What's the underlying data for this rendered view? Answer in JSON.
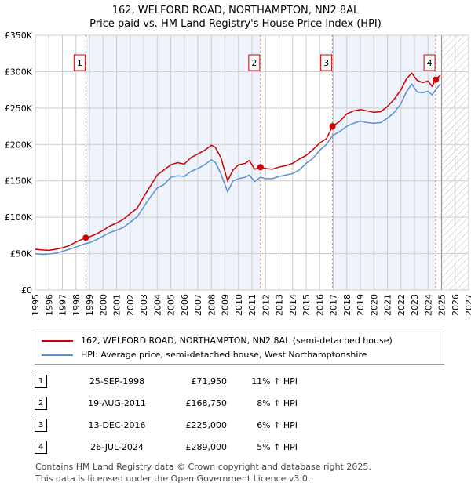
{
  "title_line1": "162, WELFORD ROAD, NORTHAMPTON, NN2 8AL",
  "title_line2": "Price paid vs. HM Land Registry's House Price Index (HPI)",
  "chart_data": {
    "type": "line",
    "xlim": [
      1995,
      2027
    ],
    "ylim": [
      0,
      350000
    ],
    "x_ticks": [
      "1995",
      "1996",
      "1997",
      "1998",
      "1999",
      "2000",
      "2001",
      "2002",
      "2003",
      "2004",
      "2005",
      "2006",
      "2007",
      "2008",
      "2009",
      "2010",
      "2011",
      "2012",
      "2013",
      "2014",
      "2015",
      "2016",
      "2017",
      "2018",
      "2019",
      "2020",
      "2021",
      "2022",
      "2023",
      "2024",
      "2025",
      "2026",
      "2027"
    ],
    "y_ticks": [
      {
        "v": 0,
        "label": "£0"
      },
      {
        "v": 50000,
        "label": "£50K"
      },
      {
        "v": 100000,
        "label": "£100K"
      },
      {
        "v": 150000,
        "label": "£150K"
      },
      {
        "v": 200000,
        "label": "£200K"
      },
      {
        "v": 250000,
        "label": "£250K"
      },
      {
        "v": 300000,
        "label": "£300K"
      },
      {
        "v": 350000,
        "label": "£350K"
      }
    ],
    "grid": true,
    "forecast_from": 2025.0,
    "shaded_ranges": [
      [
        1998.73,
        2011.63
      ],
      [
        2016.95,
        2024.57
      ]
    ],
    "series": [
      {
        "name": "162, WELFORD ROAD, NORTHAMPTON, NN2 8AL (semi-detached house)",
        "color": "#cc0000",
        "x": [
          1995,
          1995.5,
          1996,
          1996.5,
          1997,
          1997.5,
          1998,
          1998.73,
          1999,
          1999.5,
          2000,
          2000.5,
          2001,
          2001.5,
          2002,
          2002.5,
          2003,
          2003.5,
          2004,
          2004.5,
          2005,
          2005.5,
          2006,
          2006.5,
          2007,
          2007.5,
          2008,
          2008.3,
          2008.7,
          2009.2,
          2009.6,
          2010,
          2010.5,
          2010.8,
          2011.2,
          2011.63,
          2012,
          2012.5,
          2013,
          2013.5,
          2014,
          2014.5,
          2015,
          2015.5,
          2016,
          2016.5,
          2016.95,
          2017.5,
          2018,
          2018.5,
          2019,
          2019.5,
          2020,
          2020.5,
          2021,
          2021.5,
          2022,
          2022.4,
          2022.8,
          2023.2,
          2023.6,
          2024,
          2024.3,
          2024.57,
          2024.9
        ],
        "y": [
          56000,
          55000,
          54500,
          56000,
          58000,
          61000,
          66000,
          71950,
          73000,
          77000,
          82000,
          88000,
          92000,
          97000,
          105000,
          112000,
          128000,
          143000,
          158000,
          165000,
          172000,
          175000,
          173000,
          182000,
          187000,
          192000,
          199000,
          196000,
          182000,
          150000,
          165000,
          172000,
          174000,
          178000,
          166000,
          168750,
          167000,
          166000,
          169000,
          171000,
          174000,
          180000,
          185000,
          193000,
          202000,
          208000,
          225000,
          232000,
          242000,
          246000,
          248000,
          246000,
          244000,
          245000,
          252000,
          262000,
          275000,
          290000,
          298000,
          288000,
          285000,
          287000,
          280000,
          289000,
          295000
        ]
      },
      {
        "name": "HPI: Average price, semi-detached house, West Northamptonshire",
        "color": "#5b8fd0",
        "x": [
          1995,
          1995.5,
          1996,
          1996.5,
          1997,
          1997.5,
          1998,
          1998.73,
          1999,
          1999.5,
          2000,
          2000.5,
          2001,
          2001.5,
          2002,
          2002.5,
          2003,
          2003.5,
          2004,
          2004.5,
          2005,
          2005.5,
          2006,
          2006.5,
          2007,
          2007.5,
          2008,
          2008.3,
          2008.7,
          2009.2,
          2009.6,
          2010,
          2010.5,
          2010.8,
          2011.2,
          2011.63,
          2012,
          2012.5,
          2013,
          2013.5,
          2014,
          2014.5,
          2015,
          2015.5,
          2016,
          2016.5,
          2016.95,
          2017.5,
          2018,
          2018.5,
          2019,
          2019.5,
          2020,
          2020.5,
          2021,
          2021.5,
          2022,
          2022.4,
          2022.8,
          2023.2,
          2023.6,
          2024,
          2024.3,
          2024.57,
          2024.9
        ],
        "y": [
          50000,
          49000,
          49500,
          50500,
          53000,
          56000,
          59000,
          64000,
          65000,
          69000,
          74000,
          79000,
          82000,
          86000,
          93000,
          100000,
          114000,
          128000,
          140000,
          145000,
          155000,
          157000,
          156000,
          163000,
          167000,
          172000,
          179000,
          175000,
          160000,
          135000,
          150000,
          153000,
          155000,
          158000,
          149000,
          155000,
          153000,
          153000,
          156000,
          158000,
          160000,
          165000,
          174000,
          181000,
          192000,
          200000,
          212000,
          218000,
          225000,
          229000,
          232000,
          230000,
          229000,
          230000,
          236000,
          244000,
          256000,
          272000,
          283000,
          272000,
          271000,
          273000,
          268000,
          275000,
          283000
        ]
      }
    ],
    "sales": [
      {
        "label": "1",
        "x": 1998.73,
        "y": 71950
      },
      {
        "label": "2",
        "x": 2011.63,
        "y": 168750
      },
      {
        "label": "3",
        "x": 2016.95,
        "y": 225000
      },
      {
        "label": "4",
        "x": 2024.57,
        "y": 289000
      }
    ]
  },
  "legend": {
    "red": "162, WELFORD ROAD, NORTHAMPTON, NN2 8AL (semi-detached house)",
    "blue": "HPI: Average price, semi-detached house, West Northamptonshire"
  },
  "table": [
    {
      "num": "1",
      "date": "25-SEP-1998",
      "price": "£71,950",
      "hpi": "11% ↑ HPI"
    },
    {
      "num": "2",
      "date": "19-AUG-2011",
      "price": "£168,750",
      "hpi": "8% ↑ HPI"
    },
    {
      "num": "3",
      "date": "13-DEC-2016",
      "price": "£225,000",
      "hpi": "6% ↑ HPI"
    },
    {
      "num": "4",
      "date": "26-JUL-2024",
      "price": "£289,000",
      "hpi": "5% ↑ HPI"
    }
  ],
  "footer_line1": "Contains HM Land Registry data © Crown copyright and database right 2025.",
  "footer_line2": "This data is licensed under the Open Government Licence v3.0."
}
